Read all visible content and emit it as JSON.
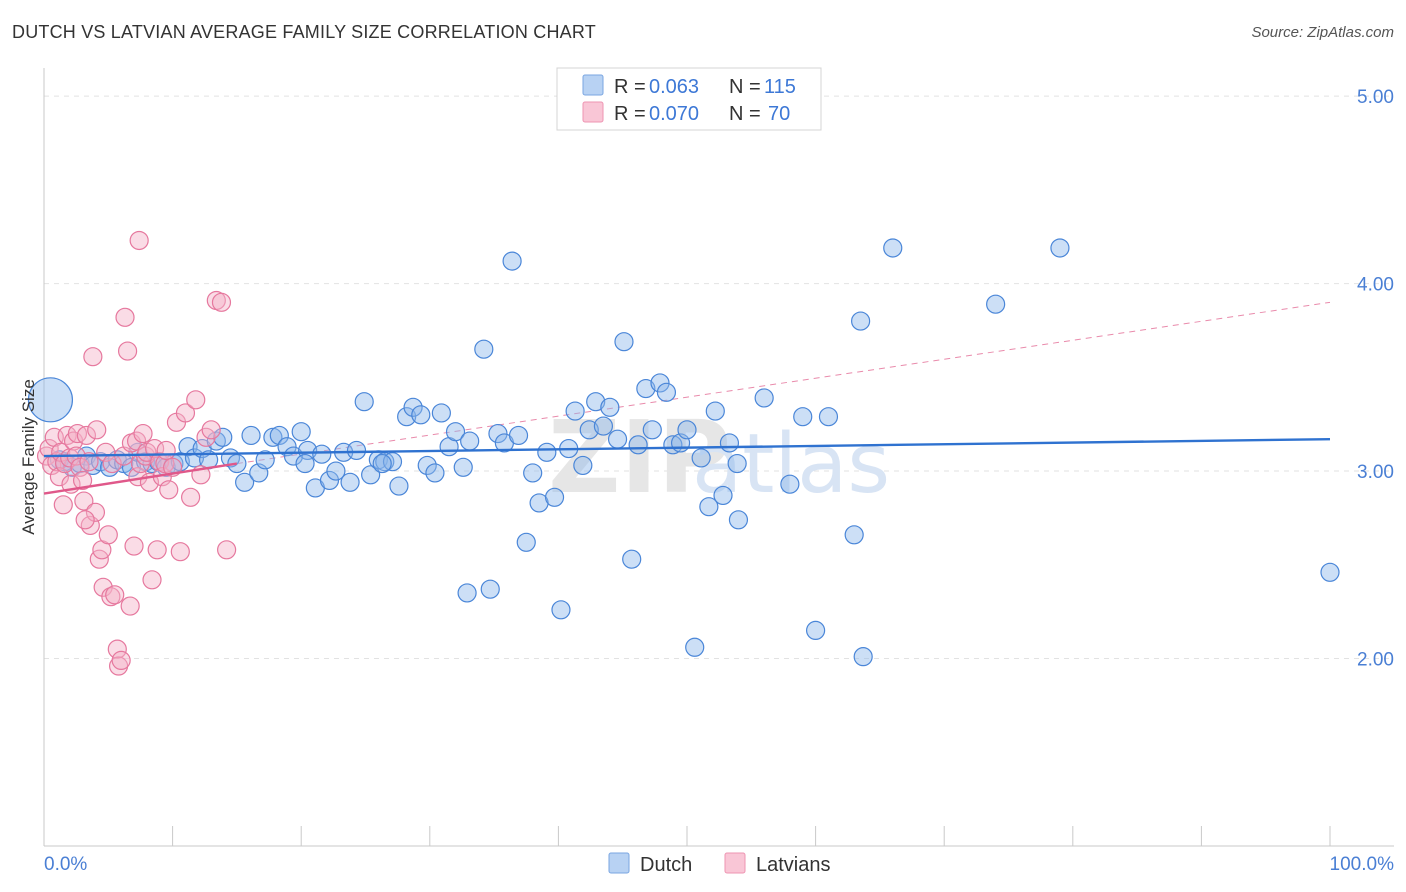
{
  "title": "DUTCH VS LATVIAN AVERAGE FAMILY SIZE CORRELATION CHART",
  "source": "Source: ZipAtlas.com",
  "watermark": {
    "zip": "ZIP",
    "atlas": "atlas"
  },
  "chart_data": {
    "type": "scatter",
    "ylabel": "Average Family Size",
    "x_range": [
      0,
      100
    ],
    "ylim": [
      1.0,
      5.15
    ],
    "x_tick_labels": [
      "0.0%",
      "100.0%"
    ],
    "y_ticks": [
      2.0,
      3.0,
      4.0,
      5.0
    ],
    "y_tick_labels": [
      "2.00",
      "3.00",
      "4.00",
      "5.00"
    ],
    "grid": true,
    "stats_box": [
      {
        "r_label": "R =",
        "r_value": "0.063",
        "n_label": "N =",
        "n_value": "115"
      },
      {
        "r_label": "R =",
        "r_value": "0.070",
        "n_label": "N =",
        "n_value": "70"
      }
    ],
    "series": [
      {
        "name": "Dutch",
        "color": "#8fb8ec",
        "edge": "#4a86d8",
        "trend": {
          "x": [
            0,
            100
          ],
          "y": [
            3.08,
            3.17
          ],
          "color": "#2f72d0"
        },
        "points": [
          [
            0.5,
            3.38
          ],
          [
            1.2,
            3.06
          ],
          [
            1.6,
            3.05
          ],
          [
            2.2,
            3.02
          ],
          [
            2.8,
            3.04
          ],
          [
            3.3,
            3.08
          ],
          [
            3.8,
            3.03
          ],
          [
            4.4,
            3.05
          ],
          [
            5.1,
            3.02
          ],
          [
            5.7,
            3.06
          ],
          [
            6.2,
            3.04
          ],
          [
            6.8,
            3.02
          ],
          [
            7.3,
            3.1
          ],
          [
            7.9,
            3.05
          ],
          [
            8.4,
            3.04
          ],
          [
            8.9,
            3.05
          ],
          [
            9.5,
            3.02
          ],
          [
            10.1,
            3.04
          ],
          [
            10.6,
            3.05
          ],
          [
            11.2,
            3.13
          ],
          [
            11.7,
            3.07
          ],
          [
            12.3,
            3.12
          ],
          [
            12.8,
            3.06
          ],
          [
            13.4,
            3.16
          ],
          [
            13.9,
            3.18
          ],
          [
            14.5,
            3.07
          ],
          [
            15.0,
            3.04
          ],
          [
            15.6,
            2.94
          ],
          [
            16.1,
            3.19
          ],
          [
            16.7,
            2.99
          ],
          [
            17.2,
            3.06
          ],
          [
            17.8,
            3.18
          ],
          [
            18.3,
            3.19
          ],
          [
            18.9,
            3.13
          ],
          [
            19.4,
            3.08
          ],
          [
            20.0,
            3.21
          ],
          [
            20.5,
            3.11
          ],
          [
            20.3,
            3.04
          ],
          [
            21.1,
            2.91
          ],
          [
            21.6,
            3.09
          ],
          [
            22.2,
            2.95
          ],
          [
            22.7,
            3.0
          ],
          [
            23.3,
            3.1
          ],
          [
            23.8,
            2.94
          ],
          [
            24.3,
            3.11
          ],
          [
            24.9,
            3.37
          ],
          [
            25.4,
            2.98
          ],
          [
            26.0,
            3.06
          ],
          [
            26.5,
            3.05
          ],
          [
            27.1,
            3.05
          ],
          [
            26.3,
            3.04
          ],
          [
            27.6,
            2.92
          ],
          [
            28.2,
            3.29
          ],
          [
            28.7,
            3.34
          ],
          [
            29.3,
            3.3
          ],
          [
            29.8,
            3.03
          ],
          [
            30.4,
            2.99
          ],
          [
            30.9,
            3.31
          ],
          [
            31.5,
            3.13
          ],
          [
            32.0,
            3.21
          ],
          [
            32.6,
            3.02
          ],
          [
            33.1,
            3.16
          ],
          [
            32.9,
            2.35
          ],
          [
            34.2,
            3.65
          ],
          [
            34.7,
            2.37
          ],
          [
            35.3,
            3.2
          ],
          [
            35.8,
            3.15
          ],
          [
            36.4,
            4.12
          ],
          [
            36.9,
            3.19
          ],
          [
            37.5,
            2.62
          ],
          [
            38.0,
            2.99
          ],
          [
            38.5,
            2.83
          ],
          [
            39.1,
            3.1
          ],
          [
            39.7,
            2.86
          ],
          [
            40.2,
            2.26
          ],
          [
            40.8,
            3.12
          ],
          [
            41.3,
            3.32
          ],
          [
            41.9,
            3.03
          ],
          [
            42.4,
            3.22
          ],
          [
            42.9,
            3.37
          ],
          [
            43.5,
            3.24
          ],
          [
            44.0,
            3.34
          ],
          [
            44.6,
            3.17
          ],
          [
            45.1,
            3.69
          ],
          [
            45.7,
            2.53
          ],
          [
            46.2,
            3.14
          ],
          [
            46.8,
            3.44
          ],
          [
            47.3,
            3.22
          ],
          [
            47.9,
            3.47
          ],
          [
            48.4,
            3.42
          ],
          [
            48.9,
            3.14
          ],
          [
            49.5,
            3.15
          ],
          [
            50.0,
            3.22
          ],
          [
            50.6,
            2.06
          ],
          [
            51.1,
            3.07
          ],
          [
            51.7,
            2.81
          ],
          [
            52.2,
            3.32
          ],
          [
            52.8,
            2.87
          ],
          [
            53.3,
            3.15
          ],
          [
            53.9,
            3.04
          ],
          [
            54.0,
            2.74
          ],
          [
            56.0,
            3.39
          ],
          [
            58.0,
            2.93
          ],
          [
            59.0,
            3.29
          ],
          [
            60.0,
            2.15
          ],
          [
            61.0,
            3.29
          ],
          [
            63.0,
            2.66
          ],
          [
            63.5,
            3.8
          ],
          [
            63.7,
            2.01
          ],
          [
            66.0,
            4.19
          ],
          [
            74.0,
            3.89
          ],
          [
            79.0,
            4.19
          ],
          [
            100.0,
            2.46
          ]
        ]
      },
      {
        "name": "Latvians",
        "color": "#f5b2c8",
        "edge": "#e6789e",
        "trend": {
          "x": [
            0,
            15
          ],
          "y": [
            2.88,
            3.04
          ],
          "color": "#e0588a"
        },
        "trend_ext": {
          "x": [
            15,
            100
          ],
          "y": [
            3.04,
            3.9
          ],
          "color": "#e98aab"
        },
        "points": [
          [
            0.2,
            3.08
          ],
          [
            0.4,
            3.12
          ],
          [
            0.6,
            3.03
          ],
          [
            0.8,
            3.18
          ],
          [
            1.0,
            3.05
          ],
          [
            1.2,
            2.97
          ],
          [
            1.3,
            3.1
          ],
          [
            1.5,
            2.82
          ],
          [
            1.6,
            3.04
          ],
          [
            1.8,
            3.19
          ],
          [
            2.0,
            3.07
          ],
          [
            2.1,
            2.93
          ],
          [
            2.3,
            3.16
          ],
          [
            2.5,
            3.08
          ],
          [
            2.6,
            3.2
          ],
          [
            2.8,
            3.02
          ],
          [
            3.0,
            2.95
          ],
          [
            3.1,
            2.84
          ],
          [
            3.3,
            3.19
          ],
          [
            3.5,
            3.05
          ],
          [
            3.6,
            2.71
          ],
          [
            3.8,
            3.61
          ],
          [
            4.0,
            2.78
          ],
          [
            4.1,
            3.22
          ],
          [
            4.3,
            2.53
          ],
          [
            4.5,
            2.58
          ],
          [
            4.6,
            2.38
          ],
          [
            4.8,
            3.1
          ],
          [
            5.0,
            2.66
          ],
          [
            5.2,
            2.33
          ],
          [
            5.3,
            3.04
          ],
          [
            5.5,
            2.34
          ],
          [
            5.7,
            2.05
          ],
          [
            5.8,
            1.96
          ],
          [
            6.0,
            1.99
          ],
          [
            6.2,
            3.08
          ],
          [
            6.3,
            3.82
          ],
          [
            6.5,
            3.64
          ],
          [
            6.7,
            2.28
          ],
          [
            6.8,
            3.15
          ],
          [
            7.0,
            2.6
          ],
          [
            7.2,
            3.16
          ],
          [
            7.3,
            2.97
          ],
          [
            7.5,
            3.04
          ],
          [
            7.7,
            3.2
          ],
          [
            7.9,
            3.08
          ],
          [
            8.0,
            3.1
          ],
          [
            8.2,
            2.94
          ],
          [
            8.4,
            2.42
          ],
          [
            8.6,
            3.12
          ],
          [
            8.8,
            2.58
          ],
          [
            9.0,
            3.05
          ],
          [
            9.2,
            2.97
          ],
          [
            9.4,
            3.04
          ],
          [
            9.5,
            3.11
          ],
          [
            9.7,
            2.9
          ],
          [
            10.0,
            3.02
          ],
          [
            10.3,
            3.26
          ],
          [
            10.6,
            2.57
          ],
          [
            11.0,
            3.31
          ],
          [
            11.4,
            2.86
          ],
          [
            11.8,
            3.38
          ],
          [
            12.2,
            2.98
          ],
          [
            12.6,
            3.18
          ],
          [
            13.0,
            3.22
          ],
          [
            13.4,
            3.91
          ],
          [
            13.8,
            3.9
          ],
          [
            14.2,
            2.58
          ],
          [
            7.4,
            4.23
          ],
          [
            3.2,
            2.74
          ]
        ]
      }
    ]
  },
  "legend": {
    "items": [
      "Dutch",
      "Latvians"
    ]
  }
}
